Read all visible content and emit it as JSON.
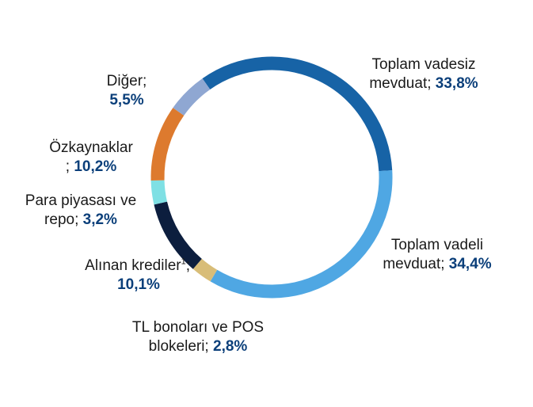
{
  "chart_data": {
    "type": "pie",
    "style": "donut",
    "slices": [
      {
        "line1": "Toplam vadesiz",
        "line2": "mevduat; ",
        "value_label": "33,8%",
        "value": 33.8,
        "color": "#1763a6"
      },
      {
        "line1": "Toplam vadeli",
        "line2": "mevduat; ",
        "value_label": "34,4%",
        "value": 34.4,
        "color": "#4fa7e3"
      },
      {
        "line1": "TL bonoları ve POS",
        "line2": "blokeleri; ",
        "value_label": "2,8%",
        "value": 2.8,
        "color": "#d8bd78"
      },
      {
        "line1": "Alınan krediler",
        "sup": "1",
        "line1_suffix": ";",
        "line2": "",
        "value_label": "10,1%",
        "value": 10.1,
        "color": "#0c1e3e"
      },
      {
        "line1": "Para piyasası ve",
        "line2": "repo; ",
        "value_label": "3,2%",
        "value": 3.2,
        "color": "#7fe0e4"
      },
      {
        "line1": "Özkaynaklar",
        "line2": "; ",
        "value_label": "10,2%",
        "value": 10.2,
        "color": "#dd7a2e"
      },
      {
        "line1": "Diğer;",
        "line2": "",
        "value_label": "5,5%",
        "value": 5.5,
        "color": "#8fa7d2"
      }
    ]
  }
}
